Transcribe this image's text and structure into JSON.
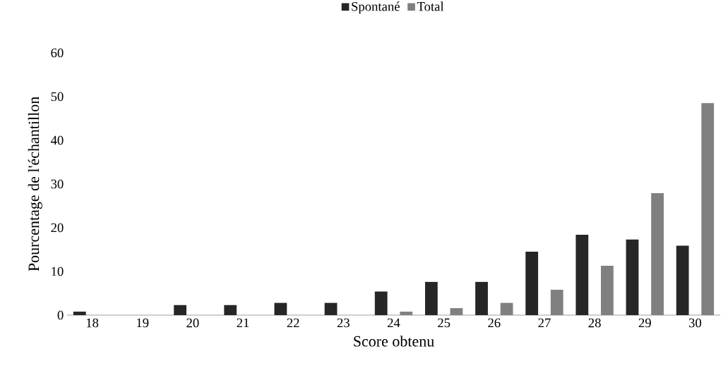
{
  "chart_data": {
    "type": "bar",
    "xlabel": "Score obtenu",
    "ylabel": "Pourcentage de l'échantillon",
    "categories": [
      "18",
      "19",
      "20",
      "21",
      "22",
      "23",
      "24",
      "25",
      "26",
      "27",
      "28",
      "29",
      "30"
    ],
    "series": [
      {
        "name": "Spontané",
        "color": "#262626",
        "values": [
          0.8,
          0,
          2.3,
          2.3,
          2.8,
          2.8,
          5.4,
          7.6,
          7.6,
          14.5,
          18.4,
          17.3,
          15.9
        ]
      },
      {
        "name": "Total",
        "color": "#808080",
        "values": [
          0,
          0,
          0,
          0,
          0,
          0,
          0.8,
          1.6,
          2.8,
          5.8,
          11.3,
          27.9,
          48.5
        ]
      }
    ],
    "ylim": [
      0,
      60
    ],
    "yticks": [
      0,
      10,
      20,
      30,
      40,
      50,
      60
    ],
    "grid": false,
    "legend": "top"
  }
}
